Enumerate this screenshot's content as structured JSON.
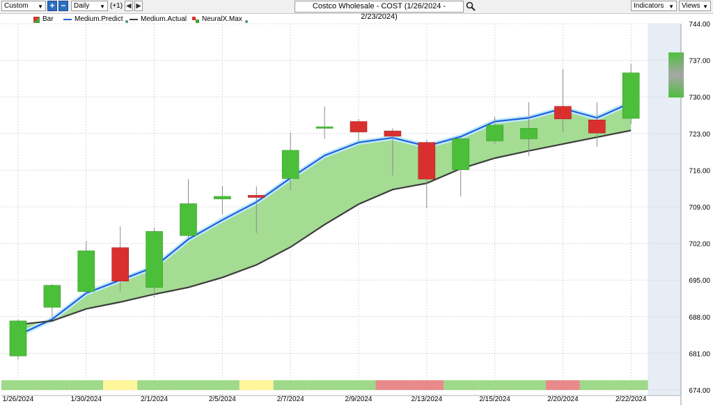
{
  "toolbar": {
    "period_select": "Custom",
    "interval_select": "Daily",
    "offset_label": "(+1)",
    "chart_title": "Costco Wholesale - COST (1/26/2024 - 2/23/2024)",
    "indicators_label": "Indicators",
    "views_label": "Views"
  },
  "legend": [
    {
      "label": "Bar",
      "color": "#3fa535"
    },
    {
      "label": "Medium.Predict",
      "color": "#1f5fe0"
    },
    {
      "label": "Medium.Actual",
      "color": "#3c3c3c"
    },
    {
      "label": "NeuralX.Max",
      "color": "#3fa535"
    }
  ],
  "colors": {
    "up": "#4cbf3a",
    "down": "#d9302f",
    "predict_line": "#1f5fe0",
    "actual_line": "#3c3c3c",
    "band_fill": "#a3dc92",
    "signal_up": "#9fd98a",
    "signal_neutral": "#fff59a",
    "signal_down": "#e88a8a"
  },
  "chart_data": {
    "type": "candlestick",
    "title": "Costco Wholesale - COST (1/26/2024 - 2/23/2024)",
    "x_tick_labels": [
      "1/26/2024",
      "1/30/2024",
      "2/1/2024",
      "2/5/2024",
      "2/7/2024",
      "2/9/2024",
      "2/13/2024",
      "2/15/2024",
      "2/20/2024",
      "2/22/2024"
    ],
    "y_ticks": [
      674.0,
      681.0,
      688.0,
      695.0,
      702.0,
      709.0,
      716.0,
      723.0,
      730.0,
      737.0,
      744.0
    ],
    "ylim": [
      674,
      744
    ],
    "grid": true,
    "legend_position": "top-left",
    "candles": [
      {
        "date": "1/26/2024",
        "open": 680.5,
        "high": 687.5,
        "low": 679.8,
        "close": 687.2
      },
      {
        "date": "1/29/2024",
        "open": 689.8,
        "high": 694.2,
        "low": 687.5,
        "close": 694.0
      },
      {
        "date": "1/30/2024",
        "open": 692.8,
        "high": 702.5,
        "low": 692.3,
        "close": 700.6
      },
      {
        "date": "1/31/2024",
        "open": 701.2,
        "high": 705.3,
        "low": 692.8,
        "close": 694.8
      },
      {
        "date": "2/1/2024",
        "open": 693.6,
        "high": 705.0,
        "low": 691.7,
        "close": 704.3
      },
      {
        "date": "2/2/2024",
        "open": 703.5,
        "high": 714.3,
        "low": 703.0,
        "close": 709.6
      },
      {
        "date": "2/5/2024",
        "open": 710.5,
        "high": 713.0,
        "low": 707.5,
        "close": 711.0
      },
      {
        "date": "2/6/2024",
        "open": 711.2,
        "high": 712.9,
        "low": 704.0,
        "close": 710.8
      },
      {
        "date": "2/7/2024",
        "open": 714.4,
        "high": 723.2,
        "low": 712.2,
        "close": 719.8
      },
      {
        "date": "2/8/2024",
        "open": 724.0,
        "high": 728.2,
        "low": 722.0,
        "close": 724.3
      },
      {
        "date": "2/9/2024",
        "open": 725.3,
        "high": 725.8,
        "low": 721.6,
        "close": 723.3
      },
      {
        "date": "2/12/2024",
        "open": 723.5,
        "high": 724.0,
        "low": 715.0,
        "close": 722.5
      },
      {
        "date": "2/13/2024",
        "open": 721.3,
        "high": 721.8,
        "low": 708.8,
        "close": 714.3
      },
      {
        "date": "2/14/2024",
        "open": 716.1,
        "high": 722.2,
        "low": 711.0,
        "close": 722.0
      },
      {
        "date": "2/15/2024",
        "open": 721.6,
        "high": 726.2,
        "low": 721.0,
        "close": 724.6
      },
      {
        "date": "2/16/2024",
        "open": 722.0,
        "high": 729.0,
        "low": 718.7,
        "close": 724.0
      },
      {
        "date": "2/20/2024",
        "open": 728.2,
        "high": 735.3,
        "low": 723.3,
        "close": 725.8
      },
      {
        "date": "2/21/2024",
        "open": 725.6,
        "high": 729.0,
        "low": 720.5,
        "close": 723.1
      },
      {
        "date": "2/22/2024",
        "open": 725.9,
        "high": 736.3,
        "low": 724.8,
        "close": 734.6
      }
    ],
    "series": [
      {
        "name": "Medium.Predict",
        "values": [
          684.5,
          687.5,
          692.5,
          695.0,
          697.5,
          702.8,
          706.5,
          709.9,
          714.5,
          718.8,
          721.3,
          722.2,
          720.6,
          722.4,
          725.3,
          726.0,
          727.8,
          726.0,
          728.9
        ]
      },
      {
        "name": "Medium.Actual",
        "values": [
          686.5,
          687.2,
          689.5,
          690.8,
          692.3,
          693.6,
          695.5,
          697.9,
          701.3,
          705.6,
          709.5,
          712.3,
          713.5,
          716.3,
          718.3,
          719.7,
          721.0,
          722.3,
          723.6
        ]
      }
    ],
    "forecast_bar": {
      "low": 729.9,
      "high": 738.5
    },
    "signal_strip": [
      "up",
      "up",
      "up",
      "neutral",
      "up",
      "up",
      "up",
      "neutral",
      "up",
      "up",
      "up",
      "down",
      "down",
      "up",
      "up",
      "up",
      "down",
      "up",
      "up"
    ]
  }
}
